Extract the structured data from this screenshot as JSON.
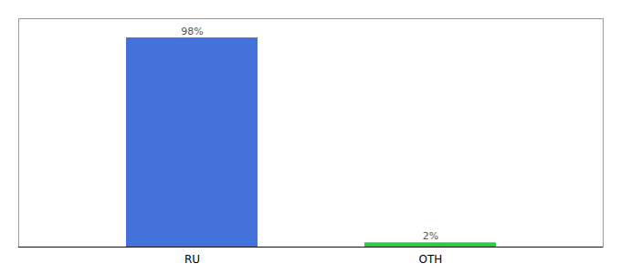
{
  "chart_data": {
    "type": "bar",
    "categories": [
      "RU",
      "OTH"
    ],
    "values": [
      98,
      2
    ],
    "colors": [
      "#4472db",
      "#2ecc40"
    ],
    "value_labels": [
      "98%",
      "2%"
    ],
    "data_labels": true,
    "ylim": [
      0,
      107
    ],
    "yticks": [],
    "tick_labels": "x",
    "grid": false
  }
}
